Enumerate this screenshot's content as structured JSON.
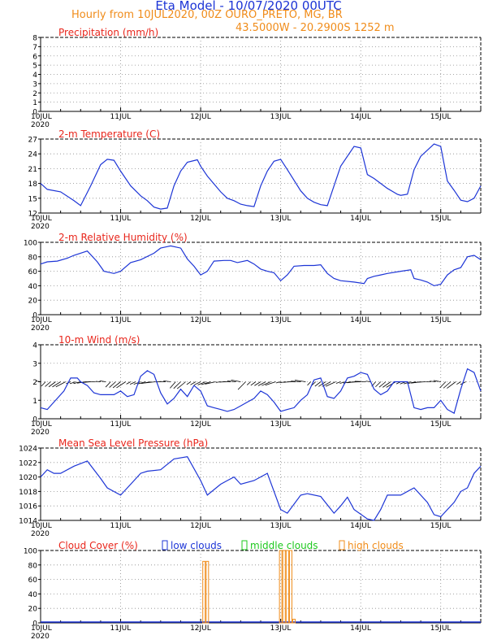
{
  "header": {
    "title": "Eta Model - 10/07/2020 00UTC",
    "subtitle": "Hourly from 10JUL2020, 00Z  OURO_PRETO, MG, BR",
    "coords": "43.5000W - 20.2900S    1252  m"
  },
  "colors": {
    "axis": "#000000",
    "grid": "#8c8c8c",
    "series": "#1d35d6",
    "title": "#e8261c",
    "orange": "#f08c1a",
    "green": "#1ec81e"
  },
  "x_axis": {
    "range": [
      0,
      132
    ],
    "ticks": [
      0,
      24,
      48,
      72,
      96,
      120
    ],
    "tick_labels": [
      "10JUL",
      "11JUL",
      "12JUL",
      "13JUL",
      "14JUL",
      "15JUL"
    ],
    "year_label": "2020"
  },
  "chart_data": [
    {
      "id": "precip",
      "type": "line",
      "title": "Precipitation (mm/h)",
      "ylim": [
        0,
        8
      ],
      "yticks": [
        0,
        1,
        2,
        3,
        4,
        5,
        6,
        7,
        8
      ],
      "x": [],
      "values": []
    },
    {
      "id": "temp",
      "type": "line",
      "title": "2-m Temperature (C)",
      "ylim": [
        12,
        27
      ],
      "yticks": [
        12,
        15,
        18,
        21,
        24,
        27
      ],
      "x": [
        0,
        2,
        6,
        10,
        12,
        15,
        18,
        20,
        22,
        24,
        27,
        30,
        32,
        34,
        36,
        38,
        40,
        42,
        44,
        47,
        48,
        50,
        54,
        56,
        58,
        60,
        62,
        64,
        66,
        68,
        70,
        72,
        74,
        78,
        80,
        82,
        84,
        86,
        88,
        90,
        94,
        96,
        98,
        100,
        102,
        104,
        106,
        107,
        108,
        110,
        112,
        114,
        118,
        120,
        122,
        124,
        126,
        128,
        130,
        132
      ],
      "values": [
        18,
        16.8,
        16.3,
        14.5,
        13.5,
        17.5,
        21.8,
        22.9,
        22.7,
        20.5,
        17.5,
        15.5,
        14.5,
        13.2,
        12.8,
        13,
        17.5,
        20.5,
        22.3,
        22.8,
        21.5,
        19.5,
        16.3,
        15,
        14.5,
        13.8,
        13.5,
        13.3,
        17.5,
        20.5,
        22.5,
        22.9,
        20.8,
        16.5,
        15,
        14.2,
        13.7,
        13.5,
        17.5,
        21.5,
        25.5,
        25.2,
        19.8,
        19,
        18,
        17,
        16.2,
        15.8,
        15.6,
        15.8,
        20.8,
        23.5,
        26,
        25.5,
        18.5,
        16.6,
        14.6,
        14.3,
        15,
        17.5
      ]
    },
    {
      "id": "rh",
      "type": "line",
      "title": "2-m Relative Humidity (%)",
      "ylim": [
        0,
        100
      ],
      "yticks": [
        0,
        20,
        40,
        60,
        80,
        100
      ],
      "x": [
        0,
        2,
        5,
        8,
        10,
        14,
        17,
        19,
        22,
        24,
        27,
        30,
        34,
        36,
        38,
        39,
        42,
        44,
        46,
        48,
        50,
        52,
        55,
        57,
        59,
        62,
        64,
        66,
        68,
        70,
        72,
        74,
        76,
        79,
        82,
        84,
        86,
        88,
        90,
        94,
        97,
        98,
        100,
        102,
        104,
        108,
        111,
        112,
        114,
        116,
        118,
        120,
        122,
        124,
        126,
        128,
        130,
        132
      ],
      "values": [
        70,
        73,
        74,
        78,
        82,
        88,
        73,
        60,
        57,
        60,
        72,
        76,
        85,
        92,
        94,
        95,
        92,
        77,
        67,
        55,
        60,
        74,
        75,
        75,
        72,
        75,
        70,
        63,
        60,
        58,
        47,
        55,
        67,
        68,
        68,
        69,
        57,
        50,
        47,
        45,
        43,
        50,
        53,
        55,
        57,
        60,
        62,
        50,
        48,
        45,
        40,
        42,
        55,
        62,
        65,
        80,
        82,
        76
      ]
    },
    {
      "id": "wind",
      "type": "line",
      "title": "10-m Wind (m/s)",
      "ylim": [
        0,
        4
      ],
      "yticks": [
        0,
        1,
        2,
        3,
        4
      ],
      "x": [
        0,
        2,
        4,
        7,
        9,
        11,
        12,
        14,
        16,
        18,
        20,
        22,
        24,
        26,
        28,
        30,
        32,
        34,
        36,
        38,
        40,
        42,
        44,
        46,
        48,
        50,
        52,
        54,
        56,
        58,
        60,
        62,
        64,
        66,
        68,
        70,
        72,
        74,
        76,
        78,
        80,
        82,
        84,
        86,
        88,
        90,
        92,
        94,
        96,
        98,
        100,
        102,
        104,
        106,
        108,
        110,
        112,
        114,
        116,
        118,
        120,
        122,
        124,
        126,
        128,
        130,
        132
      ],
      "values": [
        0.6,
        0.5,
        0.9,
        1.5,
        2.2,
        2.2,
        2.0,
        1.8,
        1.4,
        1.3,
        1.3,
        1.3,
        1.5,
        1.2,
        1.3,
        2.3,
        2.6,
        2.4,
        1.4,
        0.8,
        1.1,
        1.6,
        1.2,
        1.8,
        1.5,
        0.7,
        0.6,
        0.5,
        0.4,
        0.5,
        0.7,
        0.9,
        1.1,
        1.5,
        1.3,
        0.9,
        0.4,
        0.5,
        0.6,
        1.0,
        1.3,
        2.1,
        2.2,
        1.2,
        1.1,
        1.5,
        2.2,
        2.3,
        2.5,
        2.4,
        1.6,
        1.3,
        1.5,
        2.0,
        2.0,
        2.0,
        0.6,
        0.5,
        0.6,
        0.6,
        1.0,
        0.5,
        0.3,
        1.6,
        2.7,
        2.5,
        1.5
      ]
    },
    {
      "id": "mslp",
      "type": "line",
      "title": "Mean Sea Level Pressure (hPa)",
      "ylim": [
        1014,
        1024
      ],
      "yticks": [
        1014,
        1016,
        1018,
        1020,
        1022,
        1024
      ],
      "x": [
        0,
        2,
        4,
        6,
        10,
        14,
        18,
        20,
        24,
        26,
        30,
        32,
        36,
        40,
        44,
        48,
        50,
        54,
        56,
        58,
        60,
        64,
        68,
        72,
        74,
        78,
        80,
        84,
        88,
        90,
        92,
        94,
        98,
        100,
        102,
        104,
        108,
        112,
        116,
        118,
        120,
        124,
        126,
        128,
        130,
        132
      ],
      "values": [
        1020,
        1021,
        1020.5,
        1020.5,
        1021.5,
        1022.2,
        1019.8,
        1018.5,
        1017.5,
        1018.5,
        1020.5,
        1020.8,
        1021,
        1022.5,
        1022.8,
        1019.5,
        1017.5,
        1019,
        1019.5,
        1020,
        1019,
        1019.5,
        1020.5,
        1015.5,
        1015,
        1017.5,
        1017.7,
        1017.3,
        1015,
        1016,
        1017.2,
        1015.5,
        1014.2,
        1014,
        1015.5,
        1017.5,
        1017.5,
        1018.5,
        1016.5,
        1014.8,
        1014.5,
        1016.5,
        1018,
        1018.5,
        1020.5,
        1021.5
      ]
    },
    {
      "id": "cloud",
      "type": "bar",
      "title": "Cloud Cover (%)",
      "legend": [
        "low clouds",
        "middle clouds",
        "high clouds"
      ],
      "ylim": [
        0,
        100
      ],
      "yticks": [
        0,
        20,
        40,
        60,
        80,
        100
      ],
      "series": [
        {
          "name": "low clouds",
          "x": [],
          "values": []
        },
        {
          "name": "middle clouds",
          "x": [],
          "values": []
        },
        {
          "name": "high clouds",
          "x": [
            49,
            50,
            72,
            73,
            74,
            75,
            76
          ],
          "values": [
            85,
            85,
            100,
            100,
            100,
            100,
            5
          ]
        }
      ]
    }
  ]
}
